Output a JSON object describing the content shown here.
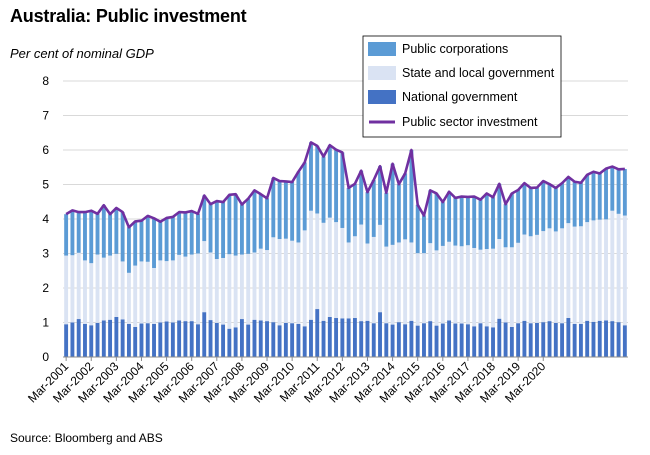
{
  "title": "Australia: Public investment",
  "ylabel": "Per cent of nominal GDP",
  "source": "Source: Bloomberg and ABS",
  "colors": {
    "national": "#4472c4",
    "state": "#dae3f3",
    "corporations": "#5b9bd5",
    "line": "#7030a0"
  },
  "chart_data": {
    "type": "bar",
    "stacked": true,
    "ylim": [
      0,
      8
    ],
    "yticks": [
      "0",
      "1",
      "2",
      "3",
      "4",
      "5",
      "6",
      "7",
      "8"
    ],
    "xticks": [
      "Mar-2001",
      "Mar-2002",
      "Mar-2003",
      "Mar-2004",
      "Mar-2005",
      "Mar-2006",
      "Mar-2007",
      "Mar-2008",
      "Mar-2009",
      "Mar-2010",
      "Mar-2011",
      "Mar-2012",
      "Mar-2013",
      "Mar-2014",
      "Mar-2015",
      "Mar-2016",
      "Mar-2017",
      "Mar-2018",
      "Mar-2019",
      "Mar-2020"
    ],
    "legend_position": "top-right",
    "series": [
      {
        "name": "Public corporations",
        "kind": "bar",
        "color_key": "corporations",
        "values": [
          1.2,
          1.3,
          1.18,
          1.4,
          1.52,
          1.18,
          1.52,
          1.2,
          1.33,
          1.43,
          1.32,
          1.28,
          1.18,
          1.33,
          1.44,
          1.12,
          1.25,
          1.26,
          1.24,
          1.28,
          1.26,
          1.15,
          1.32,
          1.4,
          1.68,
          1.62,
          1.72,
          1.78,
          1.45,
          1.6,
          1.8,
          1.58,
          1.5,
          1.72,
          1.68,
          1.66,
          1.7,
          2.05,
          1.97,
          1.98,
          1.96,
          1.92,
          2.1,
          2.1,
          2.19,
          1.58,
          1.52,
          1.56,
          1.49,
          1.65,
          1.7,
          1.56,
          2.35,
          1.69,
          1.91,
          2.68,
          1.4,
          1.09,
          1.53,
          1.65,
          1.27,
          1.45,
          1.38,
          1.44,
          1.4,
          1.49,
          1.45,
          1.61,
          1.49,
          1.6,
          1.25,
          1.56,
          1.53,
          1.49,
          1.4,
          1.37,
          1.45,
          1.28,
          1.26,
          1.31,
          1.34,
          1.3,
          1.26,
          1.37,
          1.41,
          1.34,
          1.47,
          1.28,
          1.29,
          1.35
        ]
      },
      {
        "name": "State and local government",
        "kind": "bar",
        "color_key": "state",
        "values": [
          1.99,
          1.95,
          1.92,
          1.84,
          1.8,
          1.98,
          1.82,
          1.86,
          1.83,
          1.68,
          1.48,
          1.78,
          1.8,
          1.78,
          1.62,
          1.8,
          1.75,
          1.8,
          1.9,
          1.87,
          1.93,
          2.05,
          2.06,
          1.96,
          1.85,
          1.93,
          2.16,
          2.08,
          1.87,
          2.05,
          1.95,
          2.08,
          2.06,
          2.46,
          2.5,
          2.44,
          2.39,
          2.36,
          2.78,
          3.16,
          2.77,
          2.84,
          2.88,
          2.78,
          2.62,
          2.2,
          2.37,
          2.8,
          2.24,
          2.5,
          2.53,
          2.22,
          2.31,
          2.31,
          2.46,
          2.27,
          2.1,
          2.03,
          2.26,
          2.18,
          2.25,
          2.28,
          2.26,
          2.24,
          2.29,
          2.27,
          2.13,
          2.24,
          2.28,
          2.31,
          2.18,
          2.31,
          2.33,
          2.5,
          2.52,
          2.55,
          2.64,
          2.69,
          2.65,
          2.75,
          2.75,
          2.82,
          2.83,
          2.86,
          2.94,
          2.93,
          2.93,
          3.2,
          3.14,
          3.18
        ]
      },
      {
        "name": "National government",
        "kind": "bar",
        "color_key": "national",
        "values": [
          0.95,
          1.0,
          1.1,
          0.96,
          0.92,
          0.99,
          1.06,
          1.08,
          1.16,
          1.09,
          0.96,
          0.87,
          0.97,
          0.98,
          0.96,
          1.0,
          1.03,
          1.0,
          1.06,
          1.04,
          1.04,
          0.95,
          1.3,
          1.07,
          0.99,
          0.94,
          0.82,
          0.86,
          1.1,
          0.94,
          1.08,
          1.06,
          1.04,
          1.01,
          0.92,
          0.99,
          0.98,
          0.96,
          0.89,
          1.08,
          1.39,
          1.05,
          1.16,
          1.13,
          1.12,
          1.12,
          1.13,
          1.04,
          1.05,
          0.98,
          1.3,
          0.98,
          0.94,
          1.01,
          0.95,
          1.05,
          0.91,
          0.98,
          1.04,
          0.91,
          0.97,
          1.06,
          0.97,
          0.97,
          0.95,
          0.89,
          0.98,
          0.89,
          0.86,
          1.11,
          1.0,
          0.87,
          0.98,
          1.05,
          0.98,
          0.99,
          1.01,
          1.04,
          0.99,
          0.98,
          1.13,
          0.96,
          0.96,
          1.05,
          1.02,
          1.05,
          1.06,
          1.04,
          1.01,
          0.92
        ]
      },
      {
        "name": "Public sector investment",
        "kind": "line",
        "color_key": "line",
        "values": [
          4.14,
          4.25,
          4.2,
          4.2,
          4.24,
          4.15,
          4.4,
          4.14,
          4.32,
          4.2,
          3.76,
          3.93,
          3.95,
          4.09,
          4.02,
          3.92,
          4.03,
          4.06,
          4.2,
          4.19,
          4.23,
          4.15,
          4.68,
          4.43,
          4.52,
          4.49,
          4.7,
          4.72,
          4.42,
          4.59,
          4.83,
          4.72,
          4.6,
          5.19,
          5.1,
          5.09,
          5.07,
          5.37,
          5.64,
          6.22,
          6.12,
          5.81,
          6.14,
          6.01,
          5.93,
          4.9,
          5.02,
          5.4,
          4.78,
          5.13,
          5.53,
          4.76,
          5.6,
          5.01,
          5.32,
          6.0,
          4.41,
          4.1,
          4.83,
          4.74,
          4.49,
          4.79,
          4.61,
          4.65,
          4.64,
          4.65,
          4.56,
          4.74,
          4.63,
          5.02,
          4.43,
          4.74,
          4.84,
          5.04,
          4.9,
          4.91,
          5.1,
          5.01,
          4.9,
          5.04,
          5.22,
          5.08,
          5.05,
          5.28,
          5.37,
          5.32,
          5.46,
          5.52,
          5.44,
          5.45
        ]
      }
    ]
  }
}
